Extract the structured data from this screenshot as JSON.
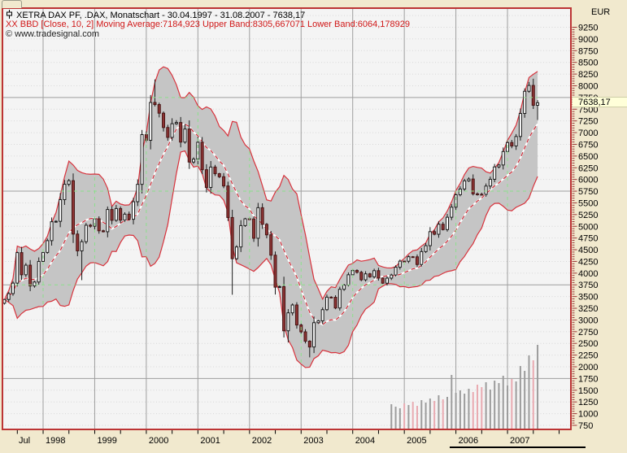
{
  "header": {
    "title_line": "XETRA DAX PF, .DAX, Monatschart - 30.04.1997 - 31.08.2007 - 7638,17",
    "indicator_line": "XX BBD [Close, 10, 2] Moving Average:7184,923 Upper Band:8305,667071 Lower Band:6064,178929",
    "copyright_line": "© www.tradesignal.com"
  },
  "y_axis": {
    "unit": "EUR",
    "min": 750,
    "max": 9250,
    "label_step": 250,
    "minor_step": 50,
    "current_price": "7638,17"
  },
  "x_axis": {
    "first_label": "Jul",
    "year_labels": [
      "1998",
      "1999",
      "2000",
      "2001",
      "2002",
      "2003",
      "2004",
      "2005",
      "2006",
      "2007"
    ]
  },
  "chart_data": {
    "type": "candlestick",
    "symbol": "XETRA DAX PF (.DAX)",
    "timeframe": "monthly",
    "start_month": "1997-04",
    "end_month": "2007-08",
    "first_open": 3357,
    "closes": [
      3438,
      3563,
      3787,
      4438,
      3965,
      4170,
      3727,
      3810,
      4250,
      4442,
      4694,
      5097,
      5106,
      5569,
      5897,
      5974,
      4834,
      4475,
      4671,
      5023,
      5002,
      5160,
      4904,
      4884,
      5359,
      5128,
      5379,
      5132,
      5259,
      5150,
      5525,
      5896,
      6958,
      6836,
      7644,
      7599,
      7415,
      7109,
      6898,
      7190,
      7216,
      6798,
      7077,
      6372,
      6434,
      6795,
      6208,
      5830,
      6265,
      6123,
      6058,
      5861,
      5188,
      4308,
      4559,
      5015,
      5160,
      5156,
      4745,
      5397,
      5041,
      4818,
      4383,
      3700,
      3712,
      2769,
      3152,
      3320,
      2893,
      2747,
      2547,
      2423,
      2942,
      2982,
      3220,
      3487,
      3484,
      3256,
      3655,
      3745,
      3965,
      4058,
      4018,
      3857,
      3985,
      3921,
      4053,
      3895,
      3785,
      3893,
      3960,
      4126,
      4256,
      4254,
      4350,
      4348,
      4184,
      4460,
      4586,
      4886,
      4830,
      5044,
      4929,
      5193,
      5408,
      5674,
      5796,
      5970,
      6009,
      5692,
      5683,
      5682,
      5859,
      6004,
      6268,
      6309,
      6597,
      6789,
      6715,
      6917,
      7409,
      7883,
      8007,
      7584,
      7638.17
    ],
    "extreme_overrides": {
      "3": {
        "high": 4460
      },
      "18": {
        "low": 3850
      },
      "35": {
        "high": 8136
      },
      "53": {
        "low": 3539
      },
      "66": {
        "low": 2519
      },
      "71": {
        "low": 2202
      },
      "123": {
        "high": 8151
      },
      "124": {
        "high": 7694,
        "low": 7270
      }
    },
    "indicator": {
      "name": "BBD",
      "source": "Close",
      "period": 10,
      "deviation": 2,
      "moving_average": "7184,923",
      "upper_band": "8305,667071",
      "lower_band": "6064,178929"
    },
    "volume": {
      "start_index": 90,
      "values": [
        30,
        27,
        25,
        31,
        29,
        33,
        28,
        35,
        32,
        37,
        34,
        41,
        36,
        39,
        66,
        44,
        47,
        43,
        49,
        45,
        54,
        51,
        57,
        48,
        59,
        56,
        65,
        53,
        61,
        58,
        77,
        71,
        90,
        84,
        103
      ]
    },
    "grid": {
      "major_h_values": [
        1750,
        3750,
        5750,
        7750
      ],
      "minor_h_step": 250
    }
  },
  "colors": {
    "outer_bg": "#f1e9ce",
    "plot_bg": "#f4f4f4",
    "plot_border": "#bc3434",
    "grid_major": "#9e9e9e",
    "grid_minor": "#d7d7d7",
    "grid_green": "#8ce08c",
    "band_fill": "#c5c5c5",
    "band_edge": "#d8323c",
    "ma_dash": "#cc2936",
    "candle_up_fill": "#ffffff",
    "candle_down_fill": "#8e3434",
    "candle_stroke": "#1a1a1a",
    "candle_down_stroke": "#471414",
    "volume_up": "#9c9c9c",
    "volume_down": "#e9aab1",
    "axis_tick": "#9a3838",
    "price_tag_bg": "#ffffd9"
  }
}
